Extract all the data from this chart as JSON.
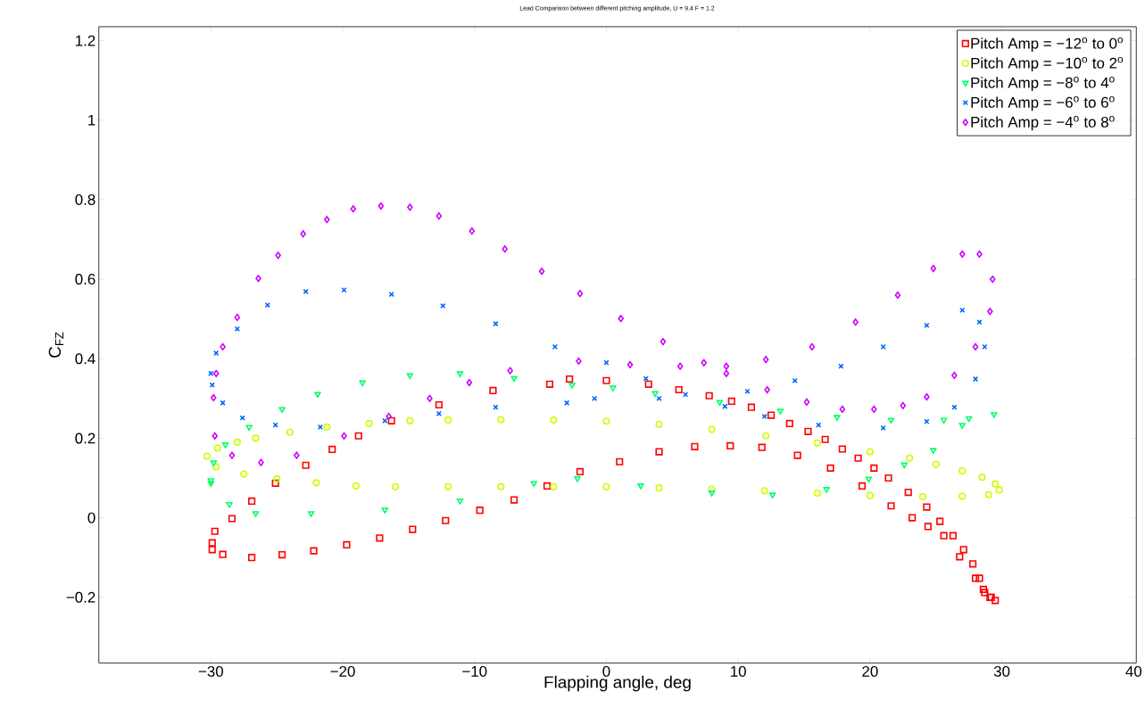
{
  "chart_data": {
    "type": "scatter",
    "title": "Lead Comparison between different pitching amplitude, U = 9.4 F = 1.2",
    "xlabel": "Flapping angle, deg",
    "ylabel": "C$_{FZ}$",
    "xlim": [
      -38.5,
      40.2
    ],
    "ylim": [
      -0.365,
      1.235
    ],
    "xticks": [
      {
        "value": -30,
        "label": "−30"
      },
      {
        "value": -20,
        "label": "−20"
      },
      {
        "value": -10,
        "label": "−10"
      },
      0,
      10,
      20,
      30,
      40
    ],
    "yticks": [
      {
        "value": -0.2,
        "label": "−0.2"
      },
      0,
      0.2,
      0.4,
      0.6,
      0.8,
      1,
      1.2
    ],
    "legend": "top right",
    "series": [
      {
        "name": "Pitch Amp = −12$^{o}$ to 0$^{o}$",
        "color": "#ff0000",
        "marker": "square",
        "x": [
          -29.9,
          -29.7,
          -28.4,
          -26.9,
          -25.1,
          -22.8,
          -20.8,
          -18.8,
          -16.3,
          -12.7,
          -8.6,
          -4.3,
          -2.8,
          0,
          3.2,
          5.5,
          7.8,
          9.5,
          11,
          12.5,
          13.9,
          15.3,
          16.6,
          17.9,
          19.1,
          20.3,
          21.4,
          22.9,
          24.3,
          25.3,
          26.3,
          27.1,
          27.8,
          28.3,
          28.7,
          29.2,
          29.5,
          29.1,
          28.6,
          28,
          26.8,
          25.6,
          24.4,
          23.2,
          21.6,
          19.4,
          17,
          14.5,
          11.8,
          9.4,
          6.7,
          4,
          1,
          -2,
          -4.5,
          -7,
          -9.6,
          -12.2,
          -14.7,
          -17.2,
          -19.7,
          -22.2,
          -24.6,
          -26.9,
          -29.1,
          -29.9
        ],
        "values": [
          -0.063,
          -0.034,
          -0.002,
          0.042,
          0.087,
          0.132,
          0.172,
          0.206,
          0.244,
          0.284,
          0.32,
          0.336,
          0.349,
          0.345,
          0.336,
          0.322,
          0.307,
          0.293,
          0.278,
          0.258,
          0.237,
          0.217,
          0.197,
          0.173,
          0.15,
          0.125,
          0.1,
          0.064,
          0.027,
          -0.009,
          -0.045,
          -0.08,
          -0.116,
          -0.152,
          -0.188,
          -0.2,
          -0.208,
          -0.2,
          -0.18,
          -0.152,
          -0.098,
          -0.045,
          -0.022,
          0,
          0.03,
          0.08,
          0.125,
          0.157,
          0.177,
          0.181,
          0.179,
          0.166,
          0.141,
          0.116,
          0.08,
          0.045,
          0.019,
          -0.007,
          -0.029,
          -0.051,
          -0.068,
          -0.083,
          -0.093,
          -0.1,
          -0.092,
          -0.08
        ]
      },
      {
        "name": "Pitch Amp = −10$^{o}$ to 2$^{o}$",
        "color": "#ccff00",
        "marker": "circle",
        "x": [
          -30.3,
          -29.5,
          -28,
          -26.6,
          -24,
          -21.2,
          -18,
          -14.9,
          -12,
          -8,
          -4,
          0,
          4,
          8,
          12.1,
          16,
          20,
          23,
          25,
          27,
          28.5,
          29.5,
          29.8,
          29,
          27,
          24,
          20,
          16,
          12,
          8,
          4,
          0,
          -4,
          -8,
          -12,
          -16,
          -19,
          -22,
          -25,
          -27.5,
          -29.6
        ],
        "values": [
          0.155,
          0.175,
          0.19,
          0.2,
          0.215,
          0.228,
          0.237,
          0.244,
          0.246,
          0.247,
          0.246,
          0.243,
          0.235,
          0.222,
          0.206,
          0.188,
          0.166,
          0.15,
          0.134,
          0.118,
          0.102,
          0.085,
          0.07,
          0.058,
          0.054,
          0.053,
          0.056,
          0.062,
          0.068,
          0.072,
          0.075,
          0.078,
          0.078,
          0.078,
          0.078,
          0.078,
          0.08,
          0.088,
          0.098,
          0.11,
          0.128
        ]
      },
      {
        "name": "Pitch Amp = −8$^{o}$ to 4$^{o}$",
        "color": "#00ff66",
        "marker": "triangle",
        "x": [
          -30,
          -28.9,
          -27.1,
          -24.6,
          -21.9,
          -18.5,
          -14.9,
          -11.1,
          -7,
          -2.6,
          0.5,
          3.7,
          8.6,
          13.2,
          17.5,
          21.6,
          25.6,
          27.5,
          29.4,
          27,
          24.8,
          22.6,
          19.9,
          16.7,
          12.6,
          8,
          2.6,
          -2.2,
          -5.5,
          -11.1,
          -16.8,
          -22.4,
          -26.6,
          -28.6,
          -30,
          -29.8
        ],
        "values": [
          0.094,
          0.184,
          0.228,
          0.273,
          0.311,
          0.34,
          0.358,
          0.363,
          0.351,
          0.334,
          0.327,
          0.313,
          0.291,
          0.269,
          0.253,
          0.246,
          0.246,
          0.25,
          0.26,
          0.233,
          0.17,
          0.134,
          0.098,
          0.072,
          0.058,
          0.063,
          0.081,
          0.099,
          0.087,
          0.043,
          0.02,
          0.011,
          0.011,
          0.034,
          0.087,
          0.139
        ]
      },
      {
        "name": "Pitch Amp = −6$^{o}$ to 6$^{o}$",
        "color": "#0066ff",
        "marker": "cross",
        "x": [
          -30,
          -29.6,
          -28,
          -25.7,
          -22.8,
          -19.9,
          -16.3,
          -12.4,
          -8.4,
          -3.9,
          0,
          3,
          6,
          9,
          12,
          16.1,
          21,
          24.3,
          26.4,
          28,
          28.7,
          28.3,
          27,
          24.3,
          21,
          17.8,
          14.3,
          10.7,
          4,
          -0.9,
          -3,
          -8.4,
          -12.7,
          -16.8,
          -21.7,
          -25.1,
          -27.6,
          -29.1,
          -29.9
        ],
        "values": [
          0.363,
          0.414,
          0.475,
          0.535,
          0.569,
          0.573,
          0.562,
          0.533,
          0.488,
          0.43,
          0.39,
          0.35,
          0.31,
          0.28,
          0.255,
          0.233,
          0.226,
          0.242,
          0.278,
          0.349,
          0.43,
          0.492,
          0.522,
          0.484,
          0.43,
          0.381,
          0.345,
          0.318,
          0.3,
          0.3,
          0.289,
          0.278,
          0.262,
          0.244,
          0.228,
          0.233,
          0.251,
          0.289,
          0.334
        ]
      },
      {
        "name": "Pitch Amp = −4$^{o}$ to 8$^{o}$",
        "color": "#cc00ff",
        "marker": "diamond",
        "x": [
          -29.8,
          -29.6,
          -29.1,
          -28,
          -26.4,
          -24.9,
          -23,
          -21.2,
          -19.2,
          -17.1,
          -14.9,
          -12.7,
          -10.2,
          -7.7,
          -4.9,
          -2,
          1.1,
          4.3,
          7.4,
          9.1,
          12.2,
          15.2,
          17.9,
          20.3,
          22.5,
          24.3,
          26.4,
          28,
          29.1,
          29.3,
          28.3,
          27,
          24.8,
          22.1,
          18.9,
          15.6,
          12.1,
          9.1,
          5.6,
          1.8,
          -2.1,
          -7.3,
          -10.4,
          -13.4,
          -16.5,
          -19.9,
          -23.5,
          -26.2,
          -28.4,
          -29.7
        ],
        "values": [
          0.302,
          0.363,
          0.43,
          0.504,
          0.602,
          0.66,
          0.714,
          0.75,
          0.777,
          0.784,
          0.781,
          0.759,
          0.721,
          0.676,
          0.62,
          0.564,
          0.501,
          0.443,
          0.39,
          0.363,
          0.322,
          0.291,
          0.273,
          0.273,
          0.282,
          0.304,
          0.358,
          0.43,
          0.519,
          0.6,
          0.663,
          0.663,
          0.627,
          0.56,
          0.492,
          0.43,
          0.398,
          0.381,
          0.381,
          0.385,
          0.394,
          0.37,
          0.34,
          0.3,
          0.255,
          0.206,
          0.157,
          0.139,
          0.157,
          0.206
        ]
      }
    ]
  }
}
